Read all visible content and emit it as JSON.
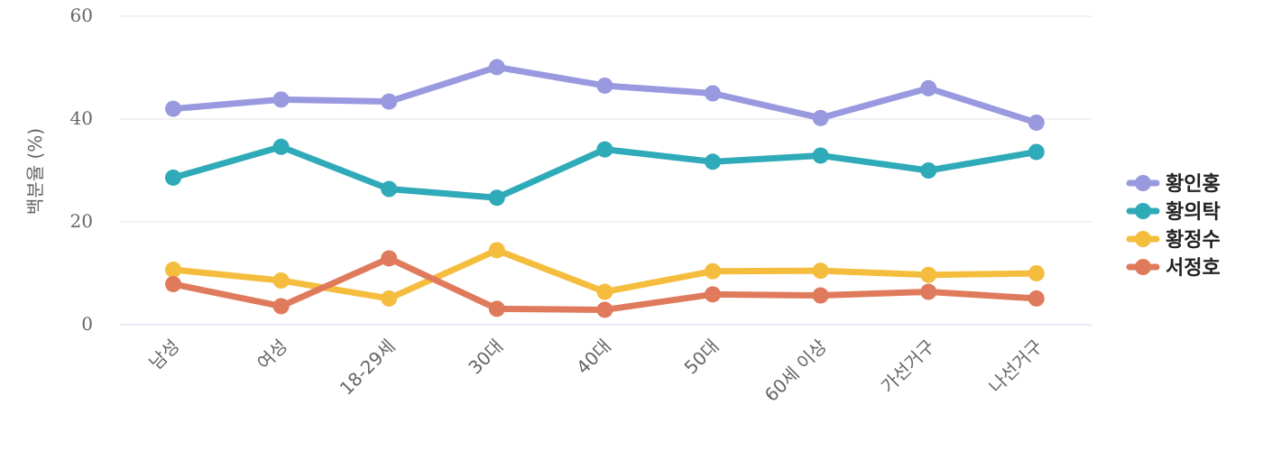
{
  "chart_data": {
    "type": "line",
    "ylabel": "백분율 (%)",
    "xlabel": "",
    "ylim": [
      0,
      60
    ],
    "yticks": [
      0,
      20,
      40,
      60
    ],
    "grid": true,
    "legend_position": "right",
    "categories": [
      "남성",
      "여성",
      "18-29세",
      "30대",
      "40대",
      "50대",
      "60세 이상",
      "가선거구",
      "나선거구"
    ],
    "series": [
      {
        "name": "황인홍",
        "color": "#9999e0",
        "values": [
          42.0,
          43.8,
          43.4,
          50.1,
          46.5,
          45.0,
          40.2,
          46.0,
          39.3
        ]
      },
      {
        "name": "황의탁",
        "color": "#2eaab8",
        "values": [
          28.6,
          34.6,
          26.4,
          24.7,
          34.1,
          31.7,
          32.9,
          30.0,
          33.6
        ]
      },
      {
        "name": "황정수",
        "color": "#f5bd3d",
        "values": [
          10.7,
          8.6,
          5.1,
          14.5,
          6.4,
          10.4,
          10.5,
          9.7,
          10.0
        ]
      },
      {
        "name": "서정호",
        "color": "#e07a5c",
        "values": [
          7.9,
          3.6,
          12.9,
          3.1,
          2.9,
          5.9,
          5.7,
          6.4,
          5.1
        ]
      }
    ]
  }
}
